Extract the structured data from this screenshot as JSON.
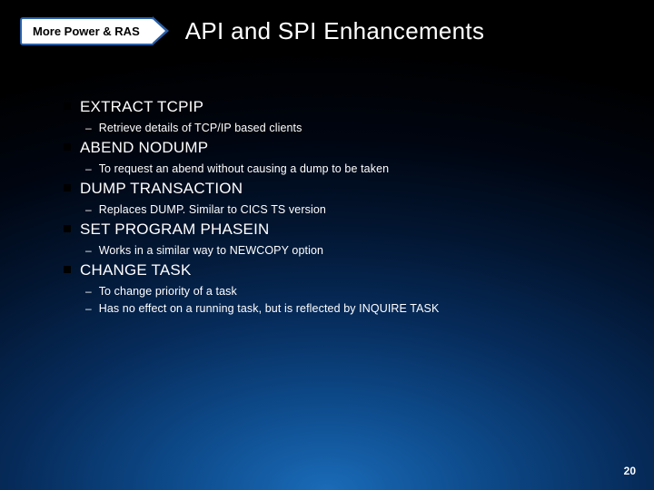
{
  "badge": "More Power & RAS",
  "title": "API and SPI Enhancements",
  "items": [
    {
      "heading": "EXTRACT TCPIP",
      "subs": [
        "Retrieve details of TCP/IP based clients"
      ]
    },
    {
      "heading": "ABEND NODUMP",
      "subs": [
        "To request an abend without causing a dump to be taken"
      ]
    },
    {
      "heading": "DUMP TRANSACTION",
      "subs": [
        "Replaces DUMP. Similar to CICS TS version"
      ]
    },
    {
      "heading": "SET PROGRAM PHASEIN",
      "subs": [
        "Works in a similar way to NEWCOPY option"
      ]
    },
    {
      "heading": "CHANGE TASK",
      "subs": [
        "To change priority of a task",
        "Has no effect on a running task, but is reflected by INQUIRE TASK"
      ]
    }
  ],
  "pageNumber": "20"
}
